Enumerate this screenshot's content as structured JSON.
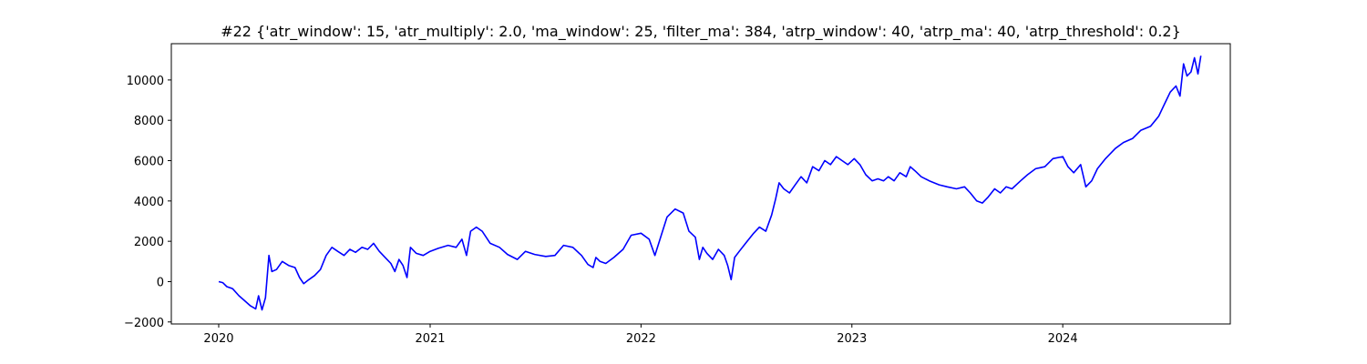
{
  "chart_data": {
    "type": "line",
    "title": "#22 {'atr_window': 15, 'atr_multiply': 2.0, 'ma_window': 25, 'filter_ma': 384, 'atrp_window': 40, 'atrp_ma': 40, 'atrp_threshold': 0.2}",
    "xlabel": "",
    "ylabel": "",
    "xlim": [
      "2019-10-11",
      "2024-10-17"
    ],
    "ylim": [
      -2100,
      11800
    ],
    "grid": false,
    "legend": "none",
    "x_ticks": [
      {
        "label": "2020",
        "date": "2020-01-01"
      },
      {
        "label": "2021",
        "date": "2021-01-01"
      },
      {
        "label": "2022",
        "date": "2022-01-01"
      },
      {
        "label": "2023",
        "date": "2023-01-01"
      },
      {
        "label": "2024",
        "date": "2024-01-01"
      }
    ],
    "y_ticks": [
      {
        "label": "−2000",
        "value": -2000
      },
      {
        "label": "0",
        "value": 0
      },
      {
        "label": "2000",
        "value": 2000
      },
      {
        "label": "4000",
        "value": 4000
      },
      {
        "label": "6000",
        "value": 6000
      },
      {
        "label": "8000",
        "value": 8000
      },
      {
        "label": "10000",
        "value": 10000
      }
    ],
    "series": [
      {
        "color": "#0000ff",
        "points": [
          [
            "2020-01-01",
            0
          ],
          [
            "2020-01-08",
            -50
          ],
          [
            "2020-01-15",
            -250
          ],
          [
            "2020-01-25",
            -350
          ],
          [
            "2020-02-05",
            -700
          ],
          [
            "2020-02-15",
            -950
          ],
          [
            "2020-02-25",
            -1200
          ],
          [
            "2020-03-05",
            -1350
          ],
          [
            "2020-03-10",
            -700
          ],
          [
            "2020-03-16",
            -1400
          ],
          [
            "2020-03-22",
            -800
          ],
          [
            "2020-03-28",
            1300
          ],
          [
            "2020-04-02",
            500
          ],
          [
            "2020-04-10",
            600
          ],
          [
            "2020-04-20",
            1000
          ],
          [
            "2020-05-01",
            800
          ],
          [
            "2020-05-12",
            700
          ],
          [
            "2020-05-20",
            200
          ],
          [
            "2020-05-27",
            -100
          ],
          [
            "2020-06-05",
            100
          ],
          [
            "2020-06-15",
            300
          ],
          [
            "2020-06-25",
            600
          ],
          [
            "2020-07-05",
            1300
          ],
          [
            "2020-07-15",
            1700
          ],
          [
            "2020-07-25",
            1500
          ],
          [
            "2020-08-05",
            1300
          ],
          [
            "2020-08-15",
            1600
          ],
          [
            "2020-08-25",
            1450
          ],
          [
            "2020-09-05",
            1700
          ],
          [
            "2020-09-15",
            1600
          ],
          [
            "2020-09-25",
            1900
          ],
          [
            "2020-10-05",
            1500
          ],
          [
            "2020-10-15",
            1200
          ],
          [
            "2020-10-25",
            900
          ],
          [
            "2020-11-01",
            500
          ],
          [
            "2020-11-08",
            1100
          ],
          [
            "2020-11-15",
            800
          ],
          [
            "2020-11-22",
            200
          ],
          [
            "2020-11-28",
            1700
          ],
          [
            "2020-12-08",
            1400
          ],
          [
            "2020-12-20",
            1300
          ],
          [
            "2021-01-01",
            1500
          ],
          [
            "2021-01-15",
            1650
          ],
          [
            "2021-02-01",
            1800
          ],
          [
            "2021-02-15",
            1700
          ],
          [
            "2021-02-25",
            2100
          ],
          [
            "2021-03-05",
            1300
          ],
          [
            "2021-03-12",
            2500
          ],
          [
            "2021-03-22",
            2700
          ],
          [
            "2021-04-01",
            2500
          ],
          [
            "2021-04-15",
            1900
          ],
          [
            "2021-05-01",
            1700
          ],
          [
            "2021-05-15",
            1350
          ],
          [
            "2021-06-01",
            1100
          ],
          [
            "2021-06-15",
            1500
          ],
          [
            "2021-07-01",
            1350
          ],
          [
            "2021-07-20",
            1250
          ],
          [
            "2021-08-05",
            1300
          ],
          [
            "2021-08-20",
            1800
          ],
          [
            "2021-09-05",
            1700
          ],
          [
            "2021-09-20",
            1300
          ],
          [
            "2021-10-01",
            850
          ],
          [
            "2021-10-10",
            700
          ],
          [
            "2021-10-15",
            1200
          ],
          [
            "2021-10-22",
            1000
          ],
          [
            "2021-11-01",
            900
          ],
          [
            "2021-11-15",
            1200
          ],
          [
            "2021-12-01",
            1600
          ],
          [
            "2021-12-15",
            2300
          ],
          [
            "2022-01-01",
            2400
          ],
          [
            "2022-01-15",
            2100
          ],
          [
            "2022-01-25",
            1300
          ],
          [
            "2022-02-05",
            2300
          ],
          [
            "2022-02-15",
            3200
          ],
          [
            "2022-03-01",
            3600
          ],
          [
            "2022-03-15",
            3400
          ],
          [
            "2022-03-25",
            2500
          ],
          [
            "2022-04-05",
            2200
          ],
          [
            "2022-04-12",
            1100
          ],
          [
            "2022-04-18",
            1700
          ],
          [
            "2022-04-25",
            1400
          ],
          [
            "2022-05-05",
            1100
          ],
          [
            "2022-05-15",
            1600
          ],
          [
            "2022-05-25",
            1300
          ],
          [
            "2022-05-31",
            800
          ],
          [
            "2022-06-06",
            100
          ],
          [
            "2022-06-12",
            1200
          ],
          [
            "2022-06-20",
            1500
          ],
          [
            "2022-07-01",
            1900
          ],
          [
            "2022-07-15",
            2400
          ],
          [
            "2022-07-25",
            2700
          ],
          [
            "2022-08-05",
            2500
          ],
          [
            "2022-08-15",
            3300
          ],
          [
            "2022-08-22",
            4100
          ],
          [
            "2022-08-28",
            4900
          ],
          [
            "2022-09-05",
            4600
          ],
          [
            "2022-09-15",
            4400
          ],
          [
            "2022-09-25",
            4800
          ],
          [
            "2022-10-05",
            5200
          ],
          [
            "2022-10-15",
            4900
          ],
          [
            "2022-10-25",
            5700
          ],
          [
            "2022-11-05",
            5500
          ],
          [
            "2022-11-15",
            6000
          ],
          [
            "2022-11-25",
            5800
          ],
          [
            "2022-12-05",
            6200
          ],
          [
            "2022-12-15",
            6000
          ],
          [
            "2022-12-25",
            5800
          ],
          [
            "2023-01-05",
            6100
          ],
          [
            "2023-01-15",
            5800
          ],
          [
            "2023-01-25",
            5300
          ],
          [
            "2023-02-05",
            5000
          ],
          [
            "2023-02-15",
            5100
          ],
          [
            "2023-02-25",
            5000
          ],
          [
            "2023-03-05",
            5200
          ],
          [
            "2023-03-15",
            5000
          ],
          [
            "2023-03-25",
            5400
          ],
          [
            "2023-04-05",
            5200
          ],
          [
            "2023-04-12",
            5700
          ],
          [
            "2023-04-20",
            5500
          ],
          [
            "2023-05-01",
            5200
          ],
          [
            "2023-05-15",
            5000
          ],
          [
            "2023-06-01",
            4800
          ],
          [
            "2023-06-15",
            4700
          ],
          [
            "2023-07-01",
            4600
          ],
          [
            "2023-07-15",
            4700
          ],
          [
            "2023-07-25",
            4400
          ],
          [
            "2023-08-05",
            4000
          ],
          [
            "2023-08-15",
            3900
          ],
          [
            "2023-08-25",
            4200
          ],
          [
            "2023-09-05",
            4600
          ],
          [
            "2023-09-15",
            4400
          ],
          [
            "2023-09-25",
            4700
          ],
          [
            "2023-10-05",
            4600
          ],
          [
            "2023-10-20",
            5000
          ],
          [
            "2023-11-01",
            5300
          ],
          [
            "2023-11-15",
            5600
          ],
          [
            "2023-12-01",
            5700
          ],
          [
            "2023-12-15",
            6100
          ],
          [
            "2024-01-01",
            6200
          ],
          [
            "2024-01-10",
            5700
          ],
          [
            "2024-01-20",
            5400
          ],
          [
            "2024-02-01",
            5800
          ],
          [
            "2024-02-10",
            4700
          ],
          [
            "2024-02-20",
            5000
          ],
          [
            "2024-03-01",
            5600
          ],
          [
            "2024-03-15",
            6100
          ],
          [
            "2024-04-01",
            6600
          ],
          [
            "2024-04-15",
            6900
          ],
          [
            "2024-05-01",
            7100
          ],
          [
            "2024-05-15",
            7500
          ],
          [
            "2024-06-01",
            7700
          ],
          [
            "2024-06-15",
            8200
          ],
          [
            "2024-06-25",
            8800
          ],
          [
            "2024-07-05",
            9400
          ],
          [
            "2024-07-15",
            9700
          ],
          [
            "2024-07-22",
            9200
          ],
          [
            "2024-07-28",
            10800
          ],
          [
            "2024-08-03",
            10200
          ],
          [
            "2024-08-10",
            10400
          ],
          [
            "2024-08-16",
            11100
          ],
          [
            "2024-08-22",
            10300
          ],
          [
            "2024-08-27",
            11200
          ]
        ]
      }
    ]
  }
}
